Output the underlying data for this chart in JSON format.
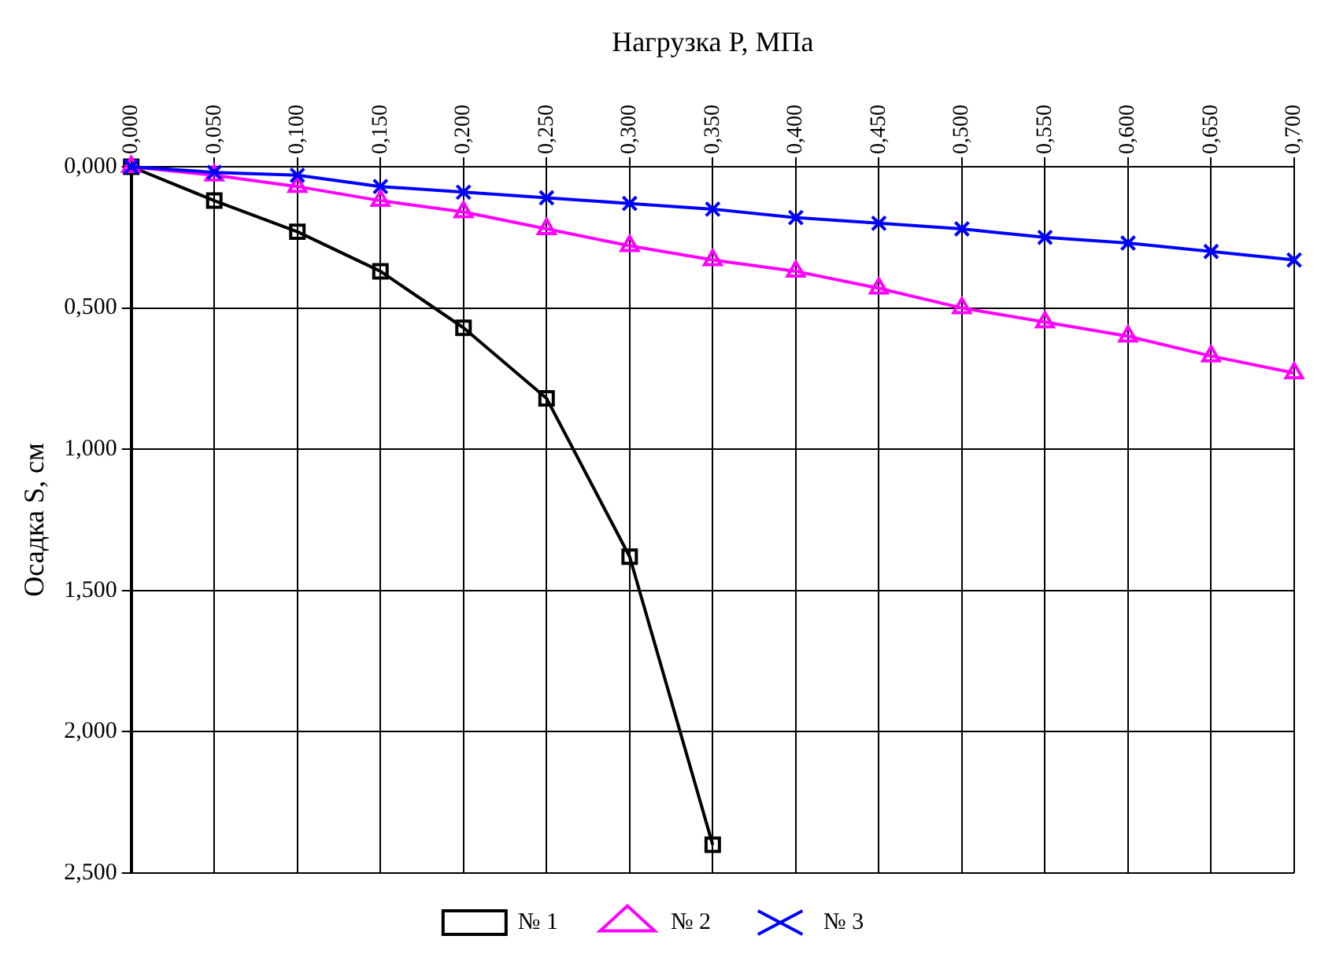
{
  "chart_data": {
    "type": "line",
    "xlabel": "Нагрузка P, МПа",
    "ylabel": "Осадка S, см",
    "x": [
      0,
      0.05,
      0.1,
      0.15,
      0.2,
      0.25,
      0.3,
      0.35,
      0.4,
      0.45,
      0.5,
      0.55,
      0.6,
      0.65,
      0.7
    ],
    "series": [
      {
        "name": "№ 1",
        "color": "#000000",
        "marker": "square",
        "values": [
          0,
          0.12,
          0.23,
          0.37,
          0.57,
          0.82,
          1.38,
          2.4,
          null,
          null,
          null,
          null,
          null,
          null,
          null
        ]
      },
      {
        "name": "№ 2",
        "color": "#ff00ff",
        "marker": "triangle",
        "values": [
          0,
          0.03,
          0.07,
          0.12,
          0.16,
          0.22,
          0.28,
          0.33,
          0.37,
          0.43,
          0.5,
          0.55,
          0.6,
          0.67,
          0.73
        ]
      },
      {
        "name": "№ 3",
        "color": "#0000ff",
        "marker": "cross",
        "values": [
          0,
          0.02,
          0.03,
          0.07,
          0.09,
          0.11,
          0.13,
          0.15,
          0.18,
          0.2,
          0.22,
          0.25,
          0.27,
          0.3,
          0.33
        ]
      }
    ],
    "xlim": [
      0,
      0.7
    ],
    "xticks": [
      {
        "value": 0,
        "label": "0,000"
      },
      {
        "value": 0.05,
        "label": "0,050"
      },
      {
        "value": 0.1,
        "label": "0,100"
      },
      {
        "value": 0.15,
        "label": "0,150"
      },
      {
        "value": 0.2,
        "label": "0,200"
      },
      {
        "value": 0.25,
        "label": "0,250"
      },
      {
        "value": 0.3,
        "label": "0,300"
      },
      {
        "value": 0.35,
        "label": "0,350"
      },
      {
        "value": 0.4,
        "label": "0,400"
      },
      {
        "value": 0.45,
        "label": "0,450"
      },
      {
        "value": 0.5,
        "label": "0,500"
      },
      {
        "value": 0.55,
        "label": "0,550"
      },
      {
        "value": 0.6,
        "label": "0,600"
      },
      {
        "value": 0.65,
        "label": "0,650"
      },
      {
        "value": 0.7,
        "label": "0,700"
      }
    ],
    "ylim": [
      2.5,
      0
    ],
    "yticks": [
      {
        "value": 0,
        "label": "0,000"
      },
      {
        "value": 0.5,
        "label": "0,500"
      },
      {
        "value": 1,
        "label": "1,000"
      },
      {
        "value": 1.5,
        "label": "1,500"
      },
      {
        "value": 2,
        "label": "2,000"
      },
      {
        "value": 2.5,
        "label": "2,500"
      }
    ],
    "grid": true,
    "legend": "bottom",
    "line_style": "solid"
  }
}
